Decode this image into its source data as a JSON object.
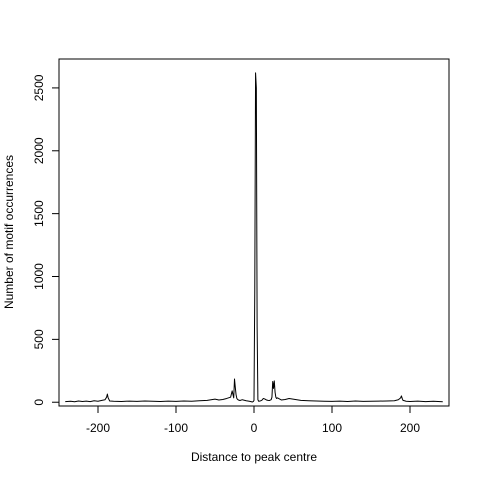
{
  "chart_data": {
    "type": "line",
    "title": "",
    "xlabel": "Distance to peak centre",
    "ylabel": "Number of motif occurrences",
    "xlim": [
      -250,
      250
    ],
    "ylim": [
      -30,
      2730
    ],
    "x_ticks": [
      -200,
      -100,
      0,
      100,
      200
    ],
    "x_tick_labels": [
      "-200",
      "-100",
      "0",
      "100",
      "200"
    ],
    "y_ticks": [
      0,
      500,
      1000,
      1500,
      2000,
      2500
    ],
    "y_tick_labels": [
      "0",
      "500",
      "1000",
      "1500",
      "2000",
      "2500"
    ],
    "grid": false,
    "legend": "none",
    "line_color": "#000000",
    "series": [
      {
        "x": [
          -242,
          -235,
          -230,
          -225,
          -220,
          -215,
          -210,
          -205,
          -200,
          -195,
          -191,
          -189,
          -188,
          -187,
          -185,
          -180,
          -170,
          -160,
          -150,
          -140,
          -130,
          -120,
          -110,
          -100,
          -90,
          -80,
          -70,
          -60,
          -55,
          -50,
          -45,
          -40,
          -35,
          -30,
          -28,
          -26,
          -25,
          -24,
          -23,
          -22,
          -21,
          -20,
          -18,
          -15,
          -10,
          -6,
          -4,
          -2,
          -1,
          0,
          1,
          2,
          3,
          4,
          5,
          6,
          8,
          10,
          12,
          14,
          16,
          18,
          20,
          22,
          23,
          24,
          25,
          26,
          27,
          28,
          29,
          30,
          35,
          40,
          45,
          50,
          55,
          60,
          70,
          80,
          90,
          100,
          110,
          120,
          130,
          140,
          150,
          160,
          170,
          180,
          185,
          188,
          189,
          190,
          191,
          193,
          195,
          200,
          210,
          220,
          230,
          242
        ],
        "y": [
          5,
          8,
          4,
          10,
          6,
          9,
          5,
          12,
          8,
          15,
          20,
          40,
          65,
          35,
          10,
          8,
          6,
          9,
          7,
          10,
          8,
          6,
          9,
          7,
          10,
          8,
          12,
          15,
          20,
          25,
          18,
          22,
          30,
          40,
          90,
          35,
          185,
          120,
          60,
          30,
          22,
          18,
          14,
          20,
          12,
          8,
          5,
          2,
          5,
          15,
          900,
          2620,
          2500,
          600,
          20,
          8,
          10,
          15,
          30,
          25,
          18,
          15,
          14,
          20,
          40,
          165,
          110,
          170,
          80,
          40,
          30,
          35,
          18,
          22,
          30,
          25,
          20,
          15,
          12,
          10,
          8,
          7,
          9,
          6,
          10,
          7,
          8,
          9,
          10,
          12,
          20,
          35,
          50,
          30,
          15,
          12,
          8,
          6,
          9,
          5,
          8,
          4
        ]
      }
    ]
  }
}
